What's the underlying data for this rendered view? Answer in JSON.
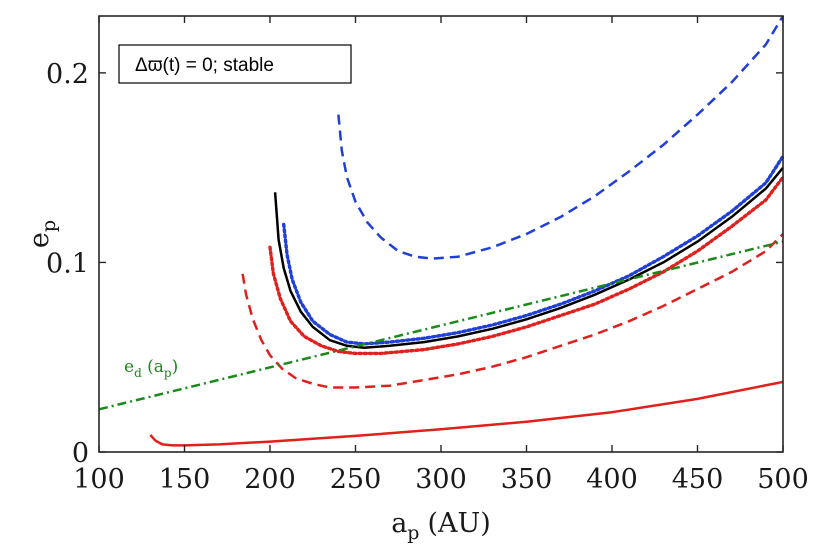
{
  "chart_data": {
    "type": "line",
    "xlabel": {
      "main": "a",
      "sub": "p",
      "unit": "(AU)"
    },
    "ylabel": {
      "main": "e",
      "sub": "p"
    },
    "xlim": [
      100,
      500
    ],
    "ylim": [
      0,
      0.23
    ],
    "xticks": [
      100,
      150,
      200,
      250,
      300,
      350,
      400,
      450,
      500
    ],
    "xtick_labels": [
      "100",
      "150",
      "200",
      "250",
      "300",
      "350",
      "400",
      "450",
      "500"
    ],
    "yticks": [
      0,
      0.1,
      0.2
    ],
    "ytick_labels": [
      "0",
      "0.1",
      "0.2"
    ],
    "legend": {
      "text": "Δϖ(t) = 0; stable",
      "position": "top-left"
    },
    "annotation": {
      "main": "e",
      "sub1": "d",
      "mid": " (a",
      "sub2": "p",
      "end": ")",
      "color": "#1a8a1a"
    },
    "series": [
      {
        "name": "black-solid",
        "color": "#000000",
        "style": "solid",
        "x": [
          203,
          205,
          208,
          212,
          218,
          225,
          235,
          245,
          255,
          270,
          290,
          310,
          330,
          350,
          370,
          390,
          410,
          430,
          450,
          470,
          490,
          500
        ],
        "y": [
          0.137,
          0.112,
          0.097,
          0.085,
          0.074,
          0.066,
          0.059,
          0.056,
          0.055,
          0.056,
          0.058,
          0.061,
          0.065,
          0.07,
          0.076,
          0.083,
          0.091,
          0.1,
          0.111,
          0.124,
          0.139,
          0.15
        ]
      },
      {
        "name": "blue-dotted",
        "color": "#1f3fd6",
        "style": "dotted",
        "x": [
          208,
          210,
          213,
          218,
          225,
          235,
          245,
          255,
          270,
          290,
          310,
          330,
          350,
          370,
          390,
          410,
          430,
          450,
          470,
          490,
          500
        ],
        "y": [
          0.12,
          0.104,
          0.091,
          0.079,
          0.069,
          0.062,
          0.058,
          0.057,
          0.058,
          0.06,
          0.063,
          0.067,
          0.072,
          0.078,
          0.085,
          0.093,
          0.103,
          0.114,
          0.127,
          0.142,
          0.156
        ]
      },
      {
        "name": "red-dotted",
        "color": "#e0201c",
        "style": "dotted",
        "x": [
          200,
          202,
          206,
          212,
          220,
          230,
          240,
          250,
          265,
          290,
          310,
          330,
          350,
          370,
          390,
          410,
          430,
          450,
          470,
          490,
          500
        ],
        "y": [
          0.108,
          0.094,
          0.081,
          0.069,
          0.061,
          0.056,
          0.053,
          0.052,
          0.052,
          0.054,
          0.057,
          0.061,
          0.066,
          0.072,
          0.078,
          0.086,
          0.095,
          0.106,
          0.119,
          0.133,
          0.145
        ]
      },
      {
        "name": "blue-dashed",
        "color": "#1f3fd6",
        "style": "dashed",
        "x": [
          240,
          242,
          245,
          250,
          257,
          265,
          275,
          285,
          295,
          310,
          330,
          350,
          370,
          390,
          410,
          430,
          450,
          470,
          490,
          500
        ],
        "y": [
          0.178,
          0.159,
          0.145,
          0.132,
          0.121,
          0.113,
          0.106,
          0.103,
          0.102,
          0.103,
          0.108,
          0.115,
          0.124,
          0.135,
          0.148,
          0.162,
          0.178,
          0.195,
          0.215,
          0.23
        ]
      },
      {
        "name": "red-dashed",
        "color": "#e0201c",
        "style": "dashed",
        "x": [
          184,
          186,
          190,
          195,
          200,
          207,
          215,
          225,
          235,
          250,
          270,
          290,
          310,
          330,
          350,
          370,
          390,
          410,
          430,
          450,
          470,
          490,
          500
        ],
        "y": [
          0.094,
          0.083,
          0.07,
          0.059,
          0.051,
          0.044,
          0.039,
          0.036,
          0.034,
          0.034,
          0.035,
          0.038,
          0.041,
          0.045,
          0.05,
          0.056,
          0.062,
          0.069,
          0.077,
          0.086,
          0.095,
          0.106,
          0.115
        ]
      },
      {
        "name": "red-solid",
        "color": "#e0201c",
        "style": "solid",
        "x": [
          130,
          133,
          137,
          143,
          150,
          170,
          200,
          250,
          300,
          350,
          400,
          450,
          500
        ],
        "y": [
          0.009,
          0.006,
          0.004,
          0.0035,
          0.0035,
          0.004,
          0.0055,
          0.0085,
          0.012,
          0.016,
          0.021,
          0.028,
          0.037
        ]
      },
      {
        "name": "green-dash-dot",
        "color": "#1a8a1a",
        "style": "dashdot",
        "x": [
          100,
          500
        ],
        "y": [
          0.0225,
          0.111
        ]
      }
    ]
  }
}
